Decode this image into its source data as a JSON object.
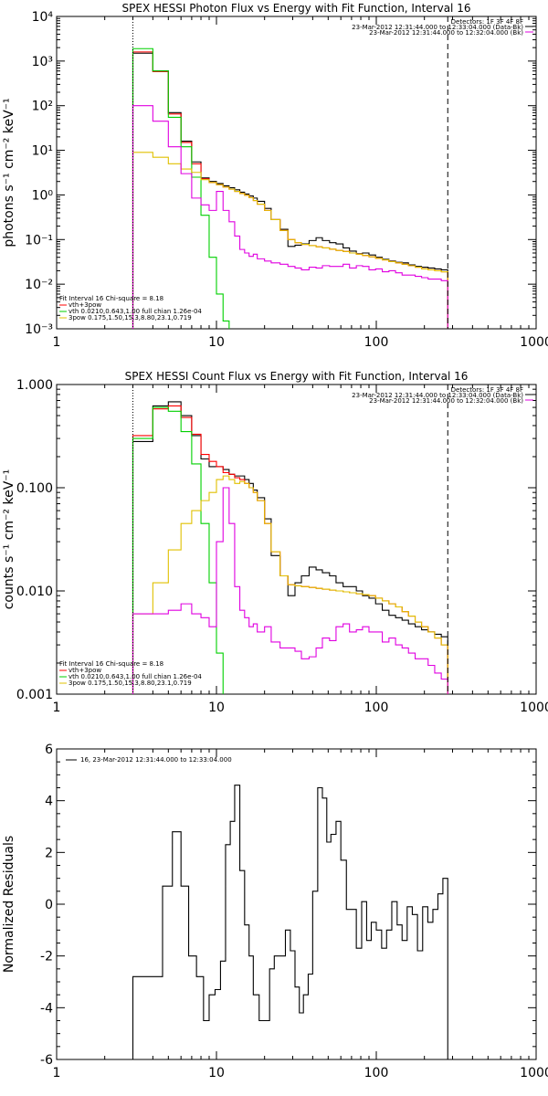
{
  "chart_data": [
    {
      "type": "line",
      "title": "SPEX HESSI Photon Flux vs Energy with Fit Function, Interval 16",
      "ylabel": "photons s⁻¹ cm⁻² keV⁻¹",
      "xlabel": "",
      "x_scale": "log",
      "y_scale": "log",
      "xlim": [
        1,
        1000
      ],
      "ylim": [
        0.001,
        10000
      ],
      "grid": false,
      "x_ticks": [
        "1",
        "10",
        "100",
        "1000"
      ],
      "y_ticks": [
        "10⁻³",
        "10⁻²",
        "10⁻¹",
        "10⁰",
        "10¹",
        "10²",
        "10³",
        "10⁴"
      ],
      "y_tick_values": [
        0.001,
        0.01,
        0.1,
        1,
        10,
        100,
        1000,
        10000
      ],
      "info_top": [
        "Detectors: 1F 3F 4F 8F",
        "23-Mar-2012 12:31:44.000 to 12:33:04.000 (Data-Bk)",
        "23-Mar-2012 12:31:44.000 to 12:32:04.000 (Bk)"
      ],
      "info_bottom": [
        "Fit Interval 16   Chi-square = 8.18",
        "vth+3pow",
        "vth 0.0210,0.643,1.00  full chian 1.26e-04",
        "3pow 0.175,1.50,15.3,8.80,23.1,0.719"
      ],
      "vlines": [
        {
          "x": 3.0,
          "style": "dotted"
        },
        {
          "x": 280,
          "style": "dashed"
        }
      ],
      "edges": [
        3.0,
        4.0,
        5.0,
        6.0,
        7.0,
        8.0,
        9.0,
        10.0,
        11.0,
        12.0,
        13.0,
        14.0,
        15.0,
        16.0,
        17.0,
        18.0,
        20.0,
        22.0,
        25.0,
        28.0,
        31.0,
        34.0,
        38.0,
        42.0,
        46.0,
        51.0,
        56.0,
        62.0,
        68.0,
        75.0,
        82.0,
        90.0,
        99.0,
        109.0,
        120.0,
        132.0,
        145.0,
        159.0,
        175.0,
        192.0,
        211.0,
        232.0,
        255.0,
        280.0
      ],
      "series": [
        {
          "color": "#000000",
          "values": [
            1500,
            600,
            70,
            16,
            5.5,
            2.4,
            2.0,
            1.8,
            1.6,
            1.45,
            1.3,
            1.15,
            1.05,
            0.95,
            0.85,
            0.72,
            0.5,
            0.28,
            0.17,
            0.07,
            0.075,
            0.08,
            0.095,
            0.11,
            0.095,
            0.085,
            0.08,
            0.065,
            0.055,
            0.048,
            0.05,
            0.045,
            0.04,
            0.036,
            0.033,
            0.031,
            0.03,
            0.027,
            0.025,
            0.024,
            0.023,
            0.022,
            0.021
          ]
        },
        {
          "color": "#ff0000",
          "values": [
            1600,
            580,
            65,
            15,
            5.0,
            2.3,
            1.9,
            1.7,
            1.5,
            1.35,
            1.2,
            1.08,
            0.98,
            0.87,
            0.75,
            0.62,
            0.45,
            0.28,
            0.16,
            0.1,
            0.085,
            0.078,
            0.073,
            0.069,
            0.065,
            0.061,
            0.057,
            0.054,
            0.05,
            0.047,
            0.044,
            0.041,
            0.038,
            0.035,
            0.032,
            0.03,
            0.028,
            0.026,
            0.024,
            0.022,
            0.021,
            0.02,
            0.019
          ]
        },
        {
          "color": "#00d000",
          "values": [
            1900,
            600,
            55,
            12,
            2.5,
            0.35,
            0.04,
            0.006,
            0.0015,
            0.0006
          ]
        },
        {
          "color": "#e0c000",
          "values": [
            9.0,
            7.0,
            5.0,
            3.8,
            3.2,
            2.2,
            1.9,
            1.7,
            1.5,
            1.35,
            1.2,
            1.08,
            0.98,
            0.87,
            0.75,
            0.62,
            0.45,
            0.28,
            0.16,
            0.1,
            0.085,
            0.078,
            0.073,
            0.069,
            0.065,
            0.061,
            0.057,
            0.054,
            0.05,
            0.047,
            0.044,
            0.041,
            0.038,
            0.035,
            0.032,
            0.03,
            0.028,
            0.026,
            0.024,
            0.022,
            0.021,
            0.02,
            0.019
          ]
        },
        {
          "color": "#e000e0",
          "values": [
            100,
            45,
            12,
            3.0,
            0.85,
            0.6,
            0.45,
            1.2,
            0.45,
            0.25,
            0.12,
            0.06,
            0.05,
            0.042,
            0.047,
            0.037,
            0.033,
            0.03,
            0.028,
            0.025,
            0.023,
            0.021,
            0.024,
            0.023,
            0.026,
            0.025,
            0.025,
            0.028,
            0.023,
            0.026,
            0.025,
            0.021,
            0.022,
            0.019,
            0.02,
            0.018,
            0.016,
            0.016,
            0.015,
            0.014,
            0.013,
            0.013,
            0.012
          ]
        }
      ]
    },
    {
      "type": "line",
      "title": "SPEX HESSI Count Flux vs Energy with Fit Function, Interval 16",
      "ylabel": "counts s⁻¹ cm⁻² keV⁻¹",
      "xlabel": "",
      "x_scale": "log",
      "y_scale": "log",
      "xlim": [
        1,
        1000
      ],
      "ylim": [
        0.001,
        1.0
      ],
      "grid": false,
      "x_ticks": [
        "1",
        "10",
        "100",
        "1000"
      ],
      "y_ticks": [
        "0.001",
        "0.010",
        "0.100",
        "1.000"
      ],
      "y_tick_values": [
        0.001,
        0.01,
        0.1,
        1.0
      ],
      "info_top": [
        "Detectors: 1F 3F 4F 8F",
        "23-Mar-2012 12:31:44.000 to 12:33:04.000 (Data-Bk)",
        "23-Mar-2012 12:31:44.000 to 12:32:04.000 (Bk)"
      ],
      "info_bottom": [
        "Fit Interval 16   Chi-square = 8.18",
        "vth+3pow",
        "vth 0.0210,0.643,1.00  full chian 1.26e-04",
        "3pow 0.175,1.50,15.3,8.80,23.1,0.719"
      ],
      "vlines": [
        {
          "x": 3.0,
          "style": "dotted"
        },
        {
          "x": 280,
          "style": "dashed"
        }
      ],
      "edges": [
        3.0,
        4.0,
        5.0,
        6.0,
        7.0,
        8.0,
        9.0,
        10.0,
        11.0,
        12.0,
        13.0,
        14.0,
        15.0,
        16.0,
        17.0,
        18.0,
        20.0,
        22.0,
        25.0,
        28.0,
        31.0,
        34.0,
        38.0,
        42.0,
        46.0,
        51.0,
        56.0,
        62.0,
        68.0,
        75.0,
        82.0,
        90.0,
        99.0,
        109.0,
        120.0,
        132.0,
        145.0,
        159.0,
        175.0,
        192.0,
        211.0,
        232.0,
        255.0,
        280.0
      ],
      "series": [
        {
          "color": "#000000",
          "values": [
            0.28,
            0.62,
            0.68,
            0.5,
            0.32,
            0.19,
            0.16,
            0.16,
            0.15,
            0.135,
            0.13,
            0.13,
            0.12,
            0.11,
            0.095,
            0.08,
            0.05,
            0.022,
            0.014,
            0.009,
            0.012,
            0.014,
            0.017,
            0.016,
            0.015,
            0.014,
            0.012,
            0.011,
            0.011,
            0.01,
            0.009,
            0.0085,
            0.0075,
            0.0065,
            0.0058,
            0.0055,
            0.0052,
            0.0048,
            0.0045,
            0.0042,
            0.004,
            0.0038,
            0.0036
          ]
        },
        {
          "color": "#ff0000",
          "values": [
            0.32,
            0.58,
            0.62,
            0.48,
            0.33,
            0.21,
            0.18,
            0.16,
            0.14,
            0.135,
            0.125,
            0.12,
            0.11,
            0.1,
            0.09,
            0.075,
            0.045,
            0.024,
            0.014,
            0.0115,
            0.0112,
            0.011,
            0.0108,
            0.0106,
            0.0104,
            0.0102,
            0.01,
            0.0098,
            0.0096,
            0.0094,
            0.0092,
            0.009,
            0.0085,
            0.008,
            0.0075,
            0.007,
            0.0063,
            0.0057,
            0.005,
            0.0045,
            0.004,
            0.0035,
            0.003
          ]
        },
        {
          "color": "#00d000",
          "values": [
            0.3,
            0.6,
            0.55,
            0.35,
            0.17,
            0.045,
            0.012,
            0.0025
          ]
        },
        {
          "color": "#e0c000",
          "values": [
            0.006,
            0.012,
            0.025,
            0.045,
            0.06,
            0.075,
            0.09,
            0.12,
            0.13,
            0.12,
            0.11,
            0.115,
            0.11,
            0.1,
            0.09,
            0.075,
            0.045,
            0.024,
            0.014,
            0.0115,
            0.0112,
            0.011,
            0.0108,
            0.0106,
            0.0104,
            0.0102,
            0.01,
            0.0098,
            0.0096,
            0.0094,
            0.0092,
            0.009,
            0.0085,
            0.008,
            0.0075,
            0.007,
            0.0063,
            0.0057,
            0.005,
            0.0045,
            0.004,
            0.0035,
            0.003
          ]
        },
        {
          "color": "#e000e0",
          "values": [
            0.006,
            0.006,
            0.0065,
            0.0075,
            0.006,
            0.0055,
            0.0045,
            0.03,
            0.1,
            0.045,
            0.011,
            0.0065,
            0.0055,
            0.0045,
            0.0048,
            0.004,
            0.0045,
            0.0032,
            0.0028,
            0.0028,
            0.0026,
            0.0022,
            0.0023,
            0.0028,
            0.0035,
            0.0033,
            0.0045,
            0.0048,
            0.004,
            0.0042,
            0.0045,
            0.004,
            0.004,
            0.0032,
            0.0035,
            0.003,
            0.0028,
            0.0025,
            0.0022,
            0.0022,
            0.0019,
            0.0016,
            0.0014
          ]
        }
      ]
    },
    {
      "type": "line",
      "title": "",
      "ylabel": "Normalized Residuals",
      "xlabel": "",
      "x_scale": "log",
      "y_scale": "linear",
      "xlim": [
        1,
        1000
      ],
      "ylim": [
        -6,
        6
      ],
      "grid": false,
      "x_ticks": [
        "1",
        "10",
        "100",
        "1000"
      ],
      "y_ticks": [
        "-6",
        "-4",
        "-2",
        "0",
        "2",
        "4",
        "6"
      ],
      "y_tick_values": [
        -6,
        -4,
        -2,
        0,
        2,
        4,
        6
      ],
      "legend": "16, 23-Mar-2012 12:31:44.000 to 12:33:04.000",
      "edges": [
        3.0,
        4.0,
        4.6,
        5.3,
        6.0,
        6.7,
        7.5,
        8.3,
        9.0,
        9.8,
        10.6,
        11.4,
        12.2,
        13.0,
        14.0,
        15.0,
        16.0,
        17.0,
        18.5,
        20.0,
        21.5,
        23.0,
        25.0,
        27.0,
        29.0,
        31.0,
        33.0,
        35.0,
        37.5,
        40.0,
        43.0,
        46.0,
        49.0,
        52.0,
        56.0,
        60.0,
        65.0,
        70.0,
        75.0,
        81.0,
        87.0,
        93.0,
        100.0,
        108.0,
        116.0,
        125.0,
        135.0,
        145.0,
        156.0,
        168.0,
        181.0,
        195.0,
        210.0,
        226.0,
        243.0,
        261.0,
        280.0
      ],
      "values": [
        -2.8,
        -2.8,
        0.7,
        2.8,
        0.7,
        -2.0,
        -2.8,
        -4.5,
        -3.5,
        -3.3,
        -2.2,
        2.3,
        3.2,
        4.6,
        1.3,
        -0.8,
        -2.0,
        -3.5,
        -4.5,
        -4.5,
        -2.5,
        -2.0,
        -2.0,
        -1.0,
        -1.8,
        -3.2,
        -4.2,
        -3.5,
        -2.7,
        0.5,
        4.5,
        4.1,
        2.4,
        2.7,
        3.2,
        1.7,
        -0.2,
        -0.2,
        -1.7,
        0.1,
        -1.4,
        -0.7,
        -1.0,
        -1.7,
        -1.0,
        0.1,
        -0.8,
        -1.4,
        -0.1,
        -0.4,
        -1.8,
        -0.1,
        -0.7,
        -0.2,
        0.4,
        1.0
      ]
    }
  ]
}
